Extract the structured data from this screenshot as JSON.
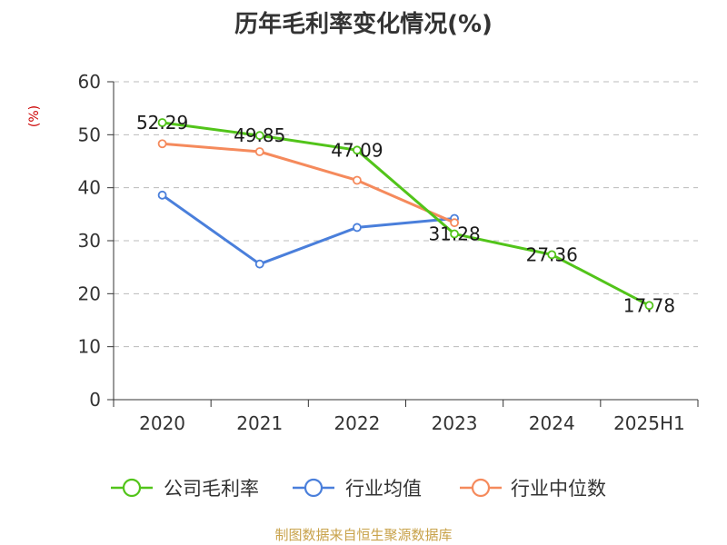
{
  "source_note": "制图数据来自恒生聚源数据库",
  "chart_data": {
    "type": "line",
    "title": "历年毛利率变化情况(%)",
    "ylabel": "(%)",
    "xlabel": "",
    "categories": [
      "2020",
      "2021",
      "2022",
      "2023",
      "2024",
      "2025H1"
    ],
    "ylim": [
      0,
      60
    ],
    "yticks": [
      0,
      10,
      20,
      30,
      40,
      50,
      60
    ],
    "grid": true,
    "legend_position": "bottom",
    "series": [
      {
        "name": "公司毛利率",
        "color": "#52c41a",
        "values": [
          52.29,
          49.85,
          47.09,
          31.28,
          27.36,
          17.78
        ],
        "labels": [
          "52.29",
          "49.85",
          "47.09",
          "31.28",
          "27.36",
          "17.78"
        ]
      },
      {
        "name": "行业均值",
        "color": "#4a7fdb",
        "values": [
          38.6,
          25.6,
          32.5,
          34.2,
          null,
          null
        ]
      },
      {
        "name": "行业中位数",
        "color": "#f58a5c",
        "values": [
          48.3,
          46.8,
          41.4,
          33.4,
          null,
          null
        ]
      }
    ]
  }
}
